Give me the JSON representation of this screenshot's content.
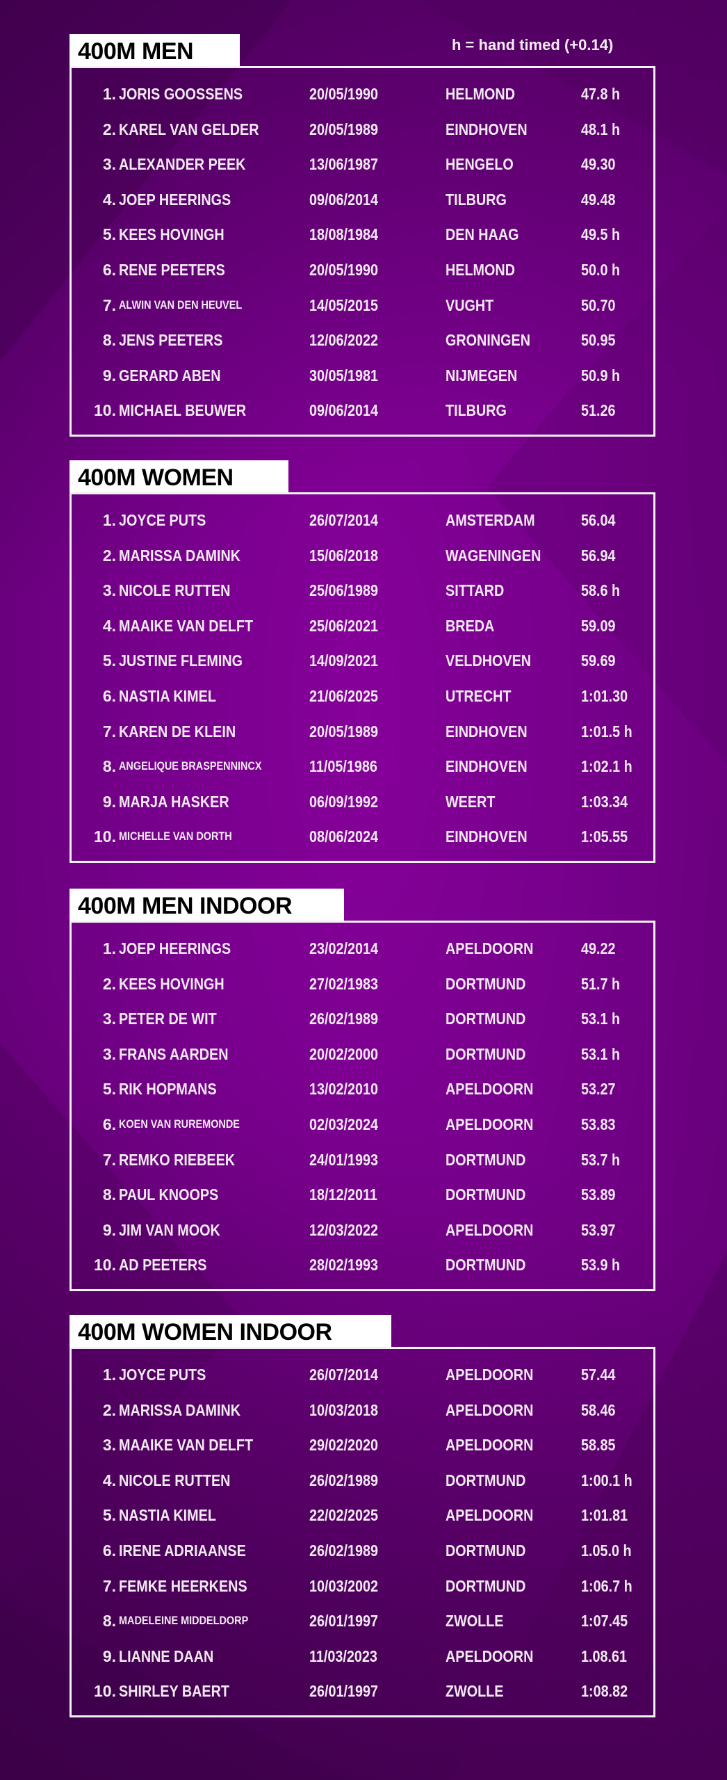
{
  "legend": "h = hand timed (+0.14)",
  "colors": {
    "background": "#7a008c",
    "header_bg": "#ffffff",
    "header_text": "#000000",
    "text": "#f1eaf1",
    "border": "#f2f2f2"
  },
  "sections": [
    {
      "title": "400M MEN",
      "rows": [
        {
          "rank": "1.",
          "name": "JORIS GOOSSENS",
          "date": "20/05/1990",
          "city": "HELMOND",
          "time": "47.8 h"
        },
        {
          "rank": "2.",
          "name": "KAREL VAN GELDER",
          "date": "20/05/1989",
          "city": "EINDHOVEN",
          "time": "48.1 h"
        },
        {
          "rank": "3.",
          "name": "ALEXANDER PEEK",
          "date": "13/06/1987",
          "city": "HENGELO",
          "time": "49.30"
        },
        {
          "rank": "4.",
          "name": "JOEP HEERINGS",
          "date": "09/06/2014",
          "city": "TILBURG",
          "time": "49.48"
        },
        {
          "rank": "5.",
          "name": "KEES HOVINGH",
          "date": "18/08/1984",
          "city": "DEN HAAG",
          "time": "49.5 h"
        },
        {
          "rank": "6.",
          "name": "RENE PEETERS",
          "date": "20/05/1990",
          "city": "HELMOND",
          "time": "50.0 h"
        },
        {
          "rank": "7.",
          "name": "ALWIN VAN DEN HEUVEL",
          "date": "14/05/2015",
          "city": "VUGHT",
          "time": "50.70"
        },
        {
          "rank": "8.",
          "name": "JENS PEETERS",
          "date": "12/06/2022",
          "city": "GRONINGEN",
          "time": "50.95"
        },
        {
          "rank": "9.",
          "name": "GERARD ABEN",
          "date": "30/05/1981",
          "city": "NIJMEGEN",
          "time": "50.9 h"
        },
        {
          "rank": "10.",
          "name": "MICHAEL BEUWER",
          "date": "09/06/2014",
          "city": "TILBURG",
          "time": "51.26"
        }
      ]
    },
    {
      "title": "400M WOMEN",
      "rows": [
        {
          "rank": "1.",
          "name": "JOYCE PUTS",
          "date": "26/07/2014",
          "city": "AMSTERDAM",
          "time": "56.04"
        },
        {
          "rank": "2.",
          "name": "MARISSA DAMINK",
          "date": "15/06/2018",
          "city": "WAGENINGEN",
          "time": "56.94"
        },
        {
          "rank": "3.",
          "name": "NICOLE RUTTEN",
          "date": "25/06/1989",
          "city": "SITTARD",
          "time": "58.6 h"
        },
        {
          "rank": "4.",
          "name": "MAAIKE VAN DELFT",
          "date": "25/06/2021",
          "city": "BREDA",
          "time": "59.09"
        },
        {
          "rank": "5.",
          "name": "JUSTINE FLEMING",
          "date": "14/09/2021",
          "city": "VELDHOVEN",
          "time": "59.69"
        },
        {
          "rank": "6.",
          "name": "NASTIA KIMEL",
          "date": "21/06/2025",
          "city": "UTRECHT",
          "time": "1:01.30"
        },
        {
          "rank": "7.",
          "name": "KAREN DE KLEIN",
          "date": "20/05/1989",
          "city": "EINDHOVEN",
          "time": "1:01.5 h"
        },
        {
          "rank": "8.",
          "name": "ANGELIQUE BRASPENNINCX",
          "date": "11/05/1986",
          "city": "EINDHOVEN",
          "time": "1:02.1 h"
        },
        {
          "rank": "9.",
          "name": "MARJA HASKER",
          "date": "06/09/1992",
          "city": "WEERT",
          "time": "1:03.34"
        },
        {
          "rank": "10.",
          "name": "MICHELLE VAN DORTH",
          "date": "08/06/2024",
          "city": "EINDHOVEN",
          "time": "1:05.55"
        }
      ]
    },
    {
      "title": "400M MEN INDOOR",
      "rows": [
        {
          "rank": "1.",
          "name": "JOEP HEERINGS",
          "date": "23/02/2014",
          "city": "APELDOORN",
          "time": "49.22"
        },
        {
          "rank": "2.",
          "name": "KEES HOVINGH",
          "date": "27/02/1983",
          "city": "DORTMUND",
          "time": "51.7 h"
        },
        {
          "rank": "3.",
          "name": "PETER DE WIT",
          "date": "26/02/1989",
          "city": "DORTMUND",
          "time": "53.1 h"
        },
        {
          "rank": "3.",
          "name": "FRANS AARDEN",
          "date": "20/02/2000",
          "city": "DORTMUND",
          "time": "53.1 h"
        },
        {
          "rank": "5.",
          "name": "RIK HOPMANS",
          "date": "13/02/2010",
          "city": "APELDOORN",
          "time": "53.27"
        },
        {
          "rank": "6.",
          "name": "KOEN VAN RUREMONDE",
          "date": "02/03/2024",
          "city": "APELDOORN",
          "time": "53.83"
        },
        {
          "rank": "7.",
          "name": "REMKO RIEBEEK",
          "date": "24/01/1993",
          "city": "DORTMUND",
          "time": "53.7 h"
        },
        {
          "rank": "8.",
          "name": "PAUL KNOOPS",
          "date": "18/12/2011",
          "city": "DORTMUND",
          "time": "53.89"
        },
        {
          "rank": "9.",
          "name": "JIM VAN MOOK",
          "date": "12/03/2022",
          "city": "APELDOORN",
          "time": "53.97"
        },
        {
          "rank": "10.",
          "name": "AD PEETERS",
          "date": "28/02/1993",
          "city": "DORTMUND",
          "time": "53.9 h"
        }
      ]
    },
    {
      "title": "400M WOMEN INDOOR",
      "rows": [
        {
          "rank": "1.",
          "name": "JOYCE PUTS",
          "date": "26/07/2014",
          "city": "APELDOORN",
          "time": "57.44"
        },
        {
          "rank": "2.",
          "name": "MARISSA DAMINK",
          "date": "10/03/2018",
          "city": "APELDOORN",
          "time": "58.46"
        },
        {
          "rank": "3.",
          "name": "MAAIKE VAN DELFT",
          "date": "29/02/2020",
          "city": "APELDOORN",
          "time": "58.85"
        },
        {
          "rank": "4.",
          "name": "NICOLE RUTTEN",
          "date": "26/02/1989",
          "city": "DORTMUND",
          "time": "1:00.1 h"
        },
        {
          "rank": "5.",
          "name": "NASTIA KIMEL",
          "date": "22/02/2025",
          "city": "APELDOORN",
          "time": "1:01.81"
        },
        {
          "rank": "6.",
          "name": "IRENE ADRIAANSE",
          "date": "26/02/1989",
          "city": "DORTMUND",
          "time": "1.05.0 h"
        },
        {
          "rank": "7.",
          "name": "FEMKE HEERKENS",
          "date": "10/03/2002",
          "city": "DORTMUND",
          "time": "1:06.7 h"
        },
        {
          "rank": "8.",
          "name": "MADELEINE MIDDELDORP",
          "date": "26/01/1997",
          "city": "ZWOLLE",
          "time": "1:07.45"
        },
        {
          "rank": "9.",
          "name": "LIANNE DAAN",
          "date": "11/03/2023",
          "city": "APELDOORN",
          "time": "1.08.61"
        },
        {
          "rank": "10.",
          "name": "SHIRLEY BAERT",
          "date": "26/01/1997",
          "city": "ZWOLLE",
          "time": "1:08.82"
        }
      ]
    }
  ]
}
